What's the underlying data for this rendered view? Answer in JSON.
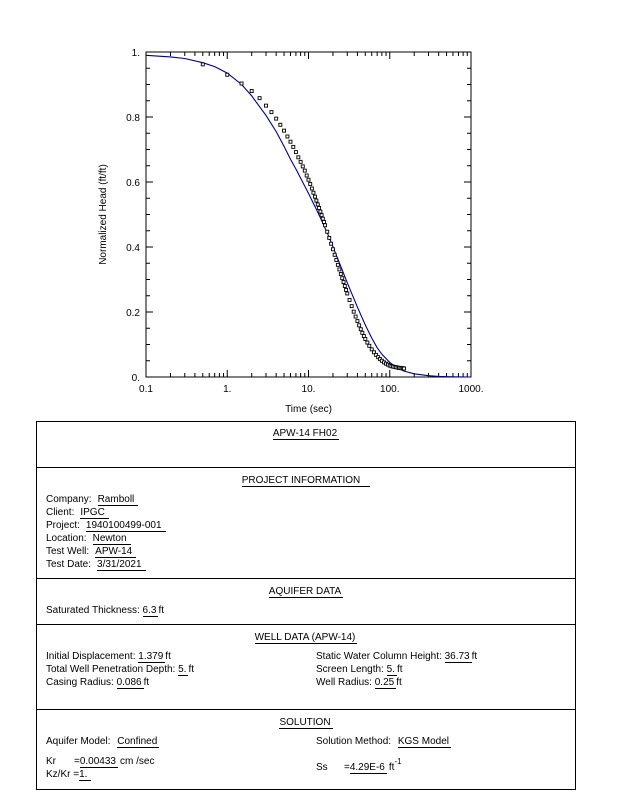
{
  "chart_data": {
    "type": "scatter",
    "xlabel": "Time  (sec)",
    "ylabel": "Normalized Head (ft/ft)",
    "xscale": "log",
    "xlim": [
      0.1,
      1000
    ],
    "ylim": [
      0,
      1
    ],
    "x_ticks": [
      "0.1",
      "1.",
      "10.",
      "100.",
      "1000."
    ],
    "y_ticks": [
      "0.",
      "0.2",
      "0.4",
      "0.6",
      "0.8",
      "1."
    ],
    "grid": false,
    "series": [
      {
        "kind": "observed",
        "marker": "open-square",
        "color": "#000000",
        "points": [
          [
            0.5,
            0.962
          ],
          [
            1.0,
            0.93
          ],
          [
            1.5,
            0.903
          ],
          [
            2.0,
            0.88
          ],
          [
            2.5,
            0.858
          ],
          [
            3.0,
            0.835
          ],
          [
            3.5,
            0.815
          ],
          [
            4.0,
            0.795
          ],
          [
            4.5,
            0.776
          ],
          [
            5.0,
            0.758
          ],
          [
            5.5,
            0.74
          ],
          [
            6.0,
            0.724
          ],
          [
            6.5,
            0.708
          ],
          [
            7.0,
            0.692
          ],
          [
            7.5,
            0.676
          ],
          [
            8.0,
            0.662
          ],
          [
            8.5,
            0.648
          ],
          [
            9.0,
            0.635
          ],
          [
            9.5,
            0.62
          ],
          [
            10,
            0.607
          ],
          [
            10.5,
            0.594
          ],
          [
            11,
            0.58
          ],
          [
            11.5,
            0.567
          ],
          [
            12,
            0.555
          ],
          [
            12.5,
            0.543
          ],
          [
            13,
            0.531
          ],
          [
            13.5,
            0.52
          ],
          [
            14,
            0.509
          ],
          [
            14.5,
            0.498
          ],
          [
            15,
            0.487
          ],
          [
            15.5,
            0.477
          ],
          [
            16,
            0.467
          ],
          [
            17,
            0.447
          ],
          [
            18,
            0.428
          ],
          [
            19,
            0.41
          ],
          [
            20,
            0.393
          ],
          [
            21,
            0.376
          ],
          [
            22,
            0.36
          ],
          [
            23,
            0.345
          ],
          [
            24,
            0.331
          ],
          [
            25,
            0.317
          ],
          [
            26,
            0.304
          ],
          [
            27,
            0.292
          ],
          [
            28,
            0.28
          ],
          [
            29,
            0.268
          ],
          [
            30,
            0.257
          ],
          [
            32,
            0.237
          ],
          [
            34,
            0.218
          ],
          [
            36,
            0.201
          ],
          [
            38,
            0.186
          ],
          [
            40,
            0.172
          ],
          [
            42,
            0.159
          ],
          [
            44,
            0.147
          ],
          [
            46,
            0.136
          ],
          [
            48,
            0.126
          ],
          [
            50,
            0.117
          ],
          [
            53,
            0.106
          ],
          [
            56,
            0.096
          ],
          [
            60,
            0.085
          ],
          [
            64,
            0.076
          ],
          [
            68,
            0.068
          ],
          [
            72,
            0.061
          ],
          [
            76,
            0.055
          ],
          [
            80,
            0.05
          ],
          [
            85,
            0.045
          ],
          [
            90,
            0.041
          ],
          [
            95,
            0.038
          ],
          [
            100,
            0.035
          ],
          [
            105,
            0.033
          ],
          [
            110,
            0.032
          ],
          [
            115,
            0.031
          ],
          [
            120,
            0.03
          ],
          [
            125,
            0.029
          ],
          [
            130,
            0.028
          ],
          [
            135,
            0.028
          ],
          [
            140,
            0.027
          ],
          [
            145,
            0.027
          ],
          [
            150,
            0.026
          ]
        ]
      },
      {
        "kind": "fitted",
        "color": "#00008b",
        "points": [
          [
            0.1,
            0.99
          ],
          [
            0.2,
            0.985
          ],
          [
            0.3,
            0.98
          ],
          [
            0.5,
            0.967
          ],
          [
            0.7,
            0.955
          ],
          [
            1.0,
            0.935
          ],
          [
            1.5,
            0.9
          ],
          [
            2.0,
            0.865
          ],
          [
            3.0,
            0.805
          ],
          [
            4.0,
            0.755
          ],
          [
            5.0,
            0.71
          ],
          [
            6.0,
            0.67
          ],
          [
            7.0,
            0.64
          ],
          [
            8.0,
            0.612
          ],
          [
            10,
            0.565
          ],
          [
            12,
            0.525
          ],
          [
            14,
            0.49
          ],
          [
            16,
            0.458
          ],
          [
            18,
            0.43
          ],
          [
            20,
            0.4
          ],
          [
            25,
            0.34
          ],
          [
            30,
            0.29
          ],
          [
            35,
            0.25
          ],
          [
            40,
            0.215
          ],
          [
            50,
            0.16
          ],
          [
            60,
            0.12
          ],
          [
            70,
            0.09
          ],
          [
            80,
            0.07
          ],
          [
            100,
            0.045
          ],
          [
            120,
            0.03
          ],
          [
            150,
            0.018
          ],
          [
            200,
            0.01
          ],
          [
            300,
            0.004
          ],
          [
            400,
            0.002
          ],
          [
            600,
            0.0005
          ],
          [
            1000,
            0.0
          ]
        ]
      }
    ]
  },
  "report": {
    "title": "APW-14  FH02",
    "project_header": "PROJECT  INFORMATION",
    "project_rows": [
      {
        "label": "Company:",
        "value": "Ramboll"
      },
      {
        "label": "Client:",
        "value": "IPGC"
      },
      {
        "label": "Project:",
        "value": "1940100499-001"
      },
      {
        "label": "Location:",
        "value": "Newton"
      },
      {
        "label": "Test Well:",
        "value": "APW-14"
      },
      {
        "label": "Test Date:",
        "value": "3/31/2021"
      }
    ],
    "aquifer_header": "AQUIFER  DATA",
    "sat_label": "Saturated Thickness:",
    "sat_value": "6.3",
    "sat_unit": "ft",
    "well_header": "WELL  DATA  (APW-14)",
    "init_disp_label": "Initial  Displacement:",
    "init_disp_value": "1.379",
    "init_disp_unit": "ft",
    "static_label": "Static  Water  Column  Height:",
    "static_value": "36.73",
    "static_unit": "ft",
    "twpd_label": "Total  Well  Penetration  Depth:",
    "twpd_value": "5.",
    "twpd_unit": "ft",
    "screen_label": "Screen  Length:",
    "screen_value": "5.",
    "screen_unit": "ft",
    "casing_label": "Casing  Radius:",
    "casing_value": "0.086",
    "casing_unit": "ft",
    "wellrad_label": "Well  Radius:",
    "wellrad_value": "0.25",
    "wellrad_unit": "ft",
    "solution_header": "SOLUTION",
    "aqmodel_label": "Aquifer Model:",
    "aqmodel_value": "Confined",
    "method_label": "Solution  Method:",
    "method_value": "KGS  Model",
    "kr_label": "Kr",
    "kr_value": "0.00433",
    "kr_unit": "cm /sec",
    "ss_label": "Ss",
    "ss_value": "4.29E-6",
    "ss_unit": "ft",
    "ss_exp": "-1",
    "kzkr_label": "Kz/Kr",
    "kzkr_value": "1."
  }
}
